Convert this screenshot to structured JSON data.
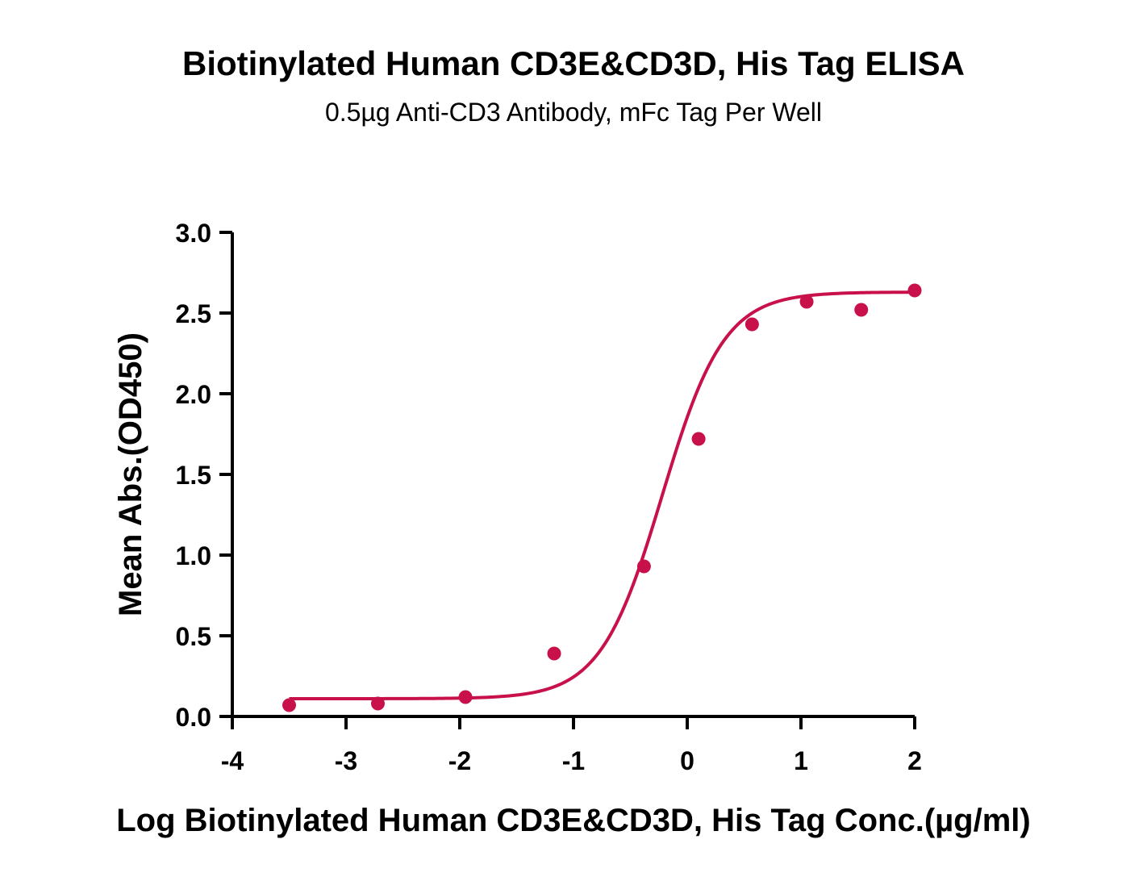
{
  "chart_data": {
    "type": "scatter",
    "title": "Biotinylated Human CD3E&CD3D, His Tag ELISA",
    "subtitle": "0.5µg Anti-CD3 Antibody, mFc Tag Per Well",
    "xlabel": "Log Biotinylated Human CD3E&CD3D, His Tag Conc.(µg/ml)",
    "ylabel": "Mean Abs.(OD450)",
    "xlim": [
      -4,
      2
    ],
    "ylim": [
      0,
      3.0
    ],
    "x_ticks": [
      "-4",
      "-3",
      "-2",
      "-1",
      "0",
      "1",
      "2"
    ],
    "y_ticks": [
      "0.0",
      "0.5",
      "1.0",
      "1.5",
      "2.0",
      "2.5",
      "3.0"
    ],
    "grid": false,
    "color": "#c8104a",
    "points": [
      {
        "x": -3.5,
        "y": 0.07
      },
      {
        "x": -2.72,
        "y": 0.08
      },
      {
        "x": -1.95,
        "y": 0.12
      },
      {
        "x": -1.17,
        "y": 0.39
      },
      {
        "x": -0.38,
        "y": 0.93
      },
      {
        "x": 0.1,
        "y": 1.72
      },
      {
        "x": 0.57,
        "y": 2.43
      },
      {
        "x": 1.05,
        "y": 2.57
      },
      {
        "x": 1.53,
        "y": 2.52
      },
      {
        "x": 2.0,
        "y": 2.64
      }
    ],
    "fit_curve": {
      "model": "4PL",
      "bottom": 0.11,
      "top": 2.63,
      "log_ec50": -0.22,
      "hill": 1.6,
      "x_range": [
        -3.5,
        2.0
      ]
    }
  }
}
